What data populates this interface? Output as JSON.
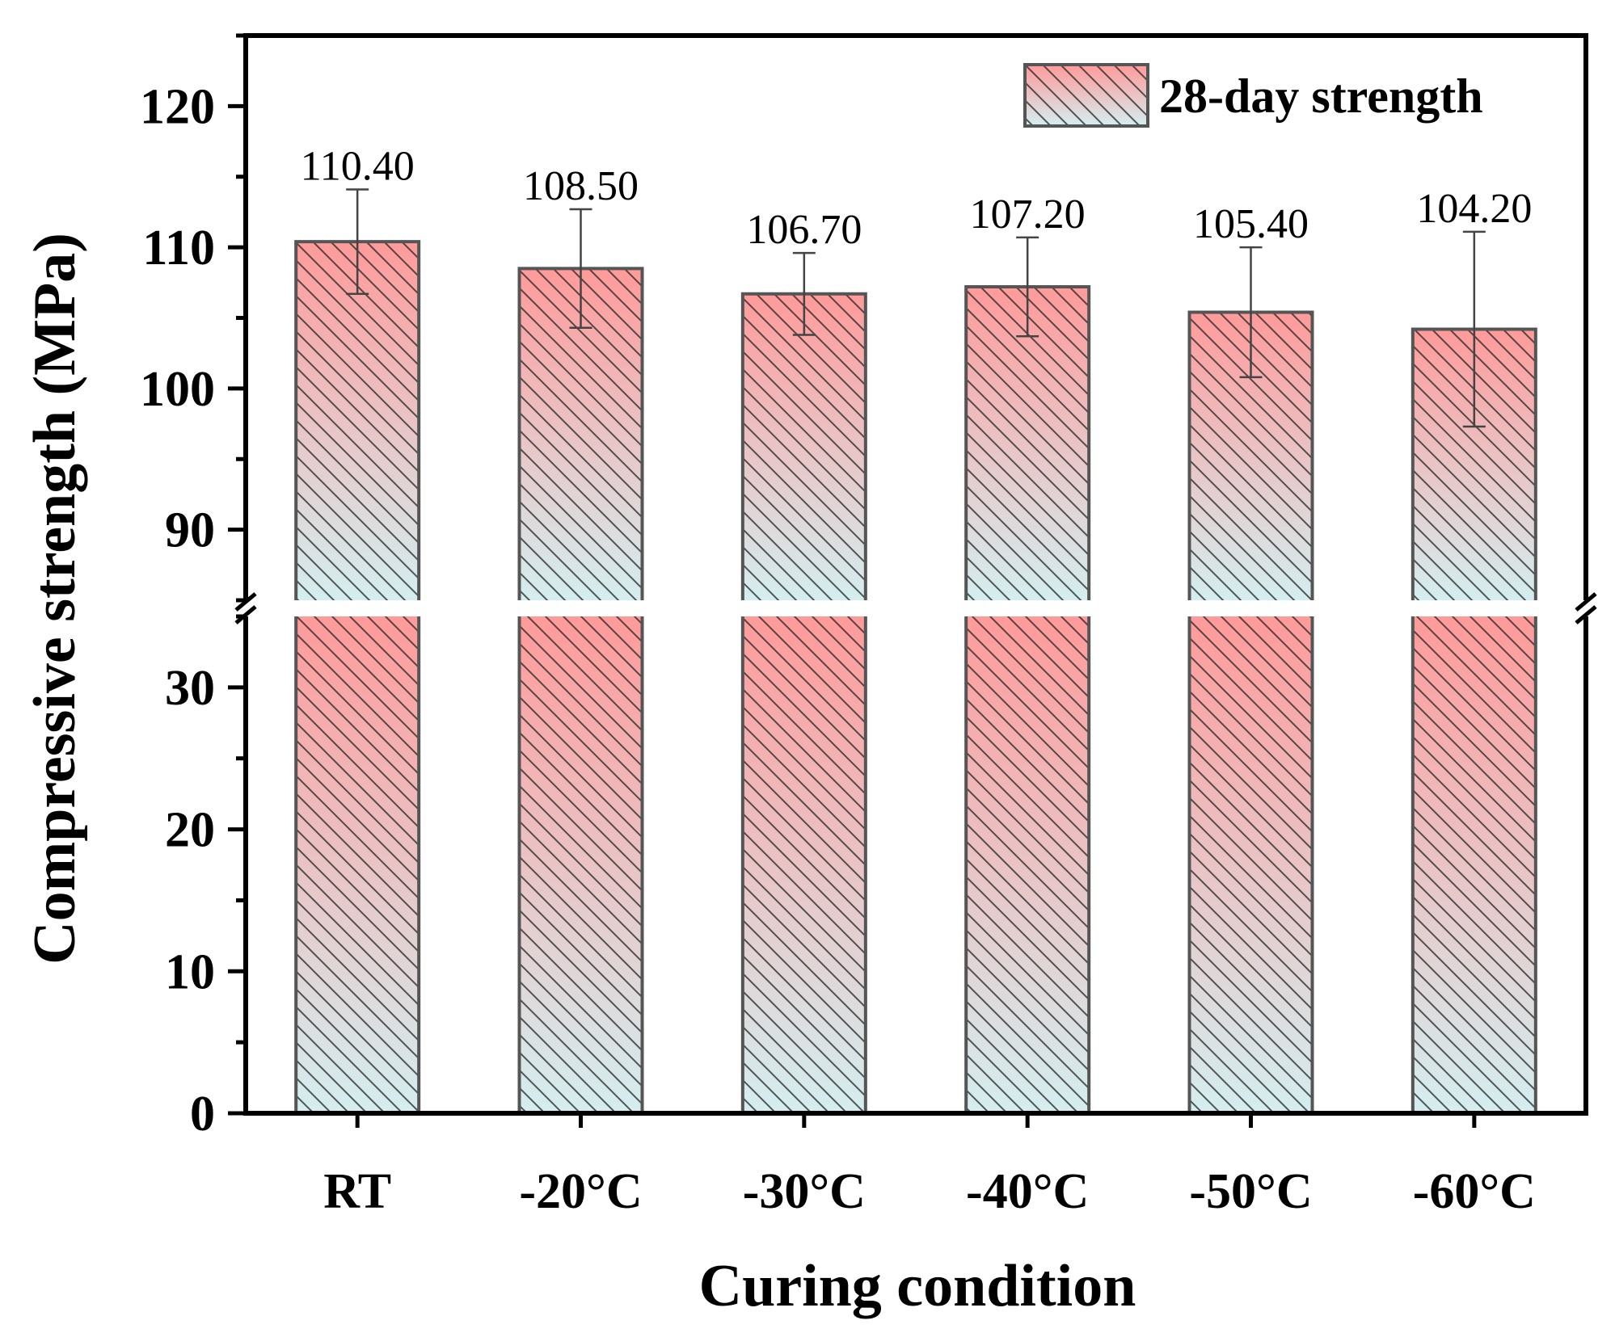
{
  "chart_data": {
    "type": "bar",
    "xlabel": "Curing condition",
    "ylabel": "Compressive strength (MPa)",
    "categories": [
      "RT",
      "-20°C",
      "-30°C",
      "-40°C",
      "-50°C",
      "-60°C"
    ],
    "series": [
      {
        "name": "28-day strength",
        "values": [
          110.4,
          108.5,
          106.7,
          107.2,
          105.4,
          104.2
        ],
        "error": [
          3.7,
          4.2,
          2.9,
          3.5,
          4.6,
          6.9
        ],
        "value_labels": [
          "110.40",
          "108.50",
          "106.70",
          "107.20",
          "105.40",
          "104.20"
        ]
      }
    ],
    "y_break": {
      "lower_range": [
        0,
        35
      ],
      "upper_range": [
        85,
        125
      ]
    },
    "y_ticks_lower": [
      "0",
      "10",
      "20",
      "30"
    ],
    "y_ticks_upper": [
      "90",
      "100",
      "110",
      "120"
    ],
    "legend_position": "top-right",
    "fill": {
      "top_color": "#ff9a9a",
      "bottom_color": "#d4eef0",
      "hatch": "diagonal"
    },
    "grid": false
  }
}
